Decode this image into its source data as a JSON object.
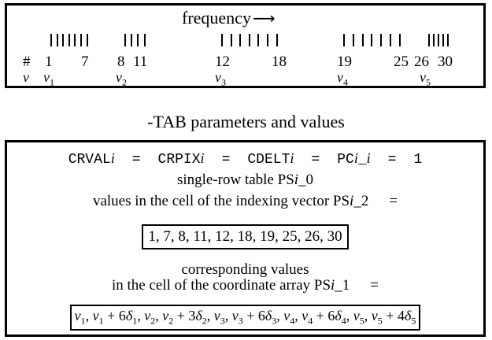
{
  "axis": {
    "label": "frequency",
    "arrow": "⟶",
    "row_labels": {
      "index": "#",
      "nu": "ν"
    },
    "index_numbers": [
      "1",
      "7",
      "8",
      "11",
      "12",
      "18",
      "19",
      "25",
      "26",
      "30"
    ],
    "nu_labels": [
      {
        "sym": "ν",
        "sub": "1"
      },
      {
        "sym": "ν",
        "sub": "2"
      },
      {
        "sym": "ν",
        "sub": "3"
      },
      {
        "sym": "ν",
        "sub": "4"
      },
      {
        "sym": "ν",
        "sub": "5"
      }
    ]
  },
  "heading": "-TAB parameters and values",
  "params": {
    "crval": "CRVAL",
    "crpix": "CRPIX",
    "cdelt": "CDELT",
    "pc": "PC",
    "var_i": "i",
    "pc_sep": "_",
    "eq": "=",
    "one": "1"
  },
  "table_line": {
    "prefix": "single-row table PS",
    "var": "i",
    "suffix": "_0"
  },
  "index_vector_line": {
    "prefix": "values in the cell of the indexing vector PS",
    "var": "i",
    "suffix": "_2",
    "eq": "="
  },
  "index_values": "1, 7, 8, 11, 12, 18, 19, 25, 26, 30",
  "corresponding_line1": "corresponding values",
  "coord_array_line": {
    "prefix": "in the cell of the coordinate array PS",
    "var": "i",
    "suffix": "_1",
    "eq": "="
  },
  "coord_values": [
    {
      "sym": "ν",
      "sub": "1",
      "plus": ""
    },
    {
      "sym": "ν",
      "sub": "1",
      "plus": "6",
      "dsub": "1"
    },
    {
      "sym": "ν",
      "sub": "2",
      "plus": ""
    },
    {
      "sym": "ν",
      "sub": "2",
      "plus": "3",
      "dsub": "2"
    },
    {
      "sym": "ν",
      "sub": "3",
      "plus": ""
    },
    {
      "sym": "ν",
      "sub": "3",
      "plus": "6",
      "dsub": "3"
    },
    {
      "sym": "ν",
      "sub": "4",
      "plus": ""
    },
    {
      "sym": "ν",
      "sub": "4",
      "plus": "6",
      "dsub": "4"
    },
    {
      "sym": "ν",
      "sub": "5",
      "plus": ""
    },
    {
      "sym": "ν",
      "sub": "5",
      "plus": "4",
      "dsub": "5"
    }
  ],
  "delta_symbol": "δ",
  "tick_groups": [
    {
      "from": 1,
      "to": 7
    },
    {
      "from": 8,
      "to": 11
    },
    {
      "from": 12,
      "to": 18
    },
    {
      "from": 19,
      "to": 25
    },
    {
      "from": 26,
      "to": 30
    }
  ]
}
